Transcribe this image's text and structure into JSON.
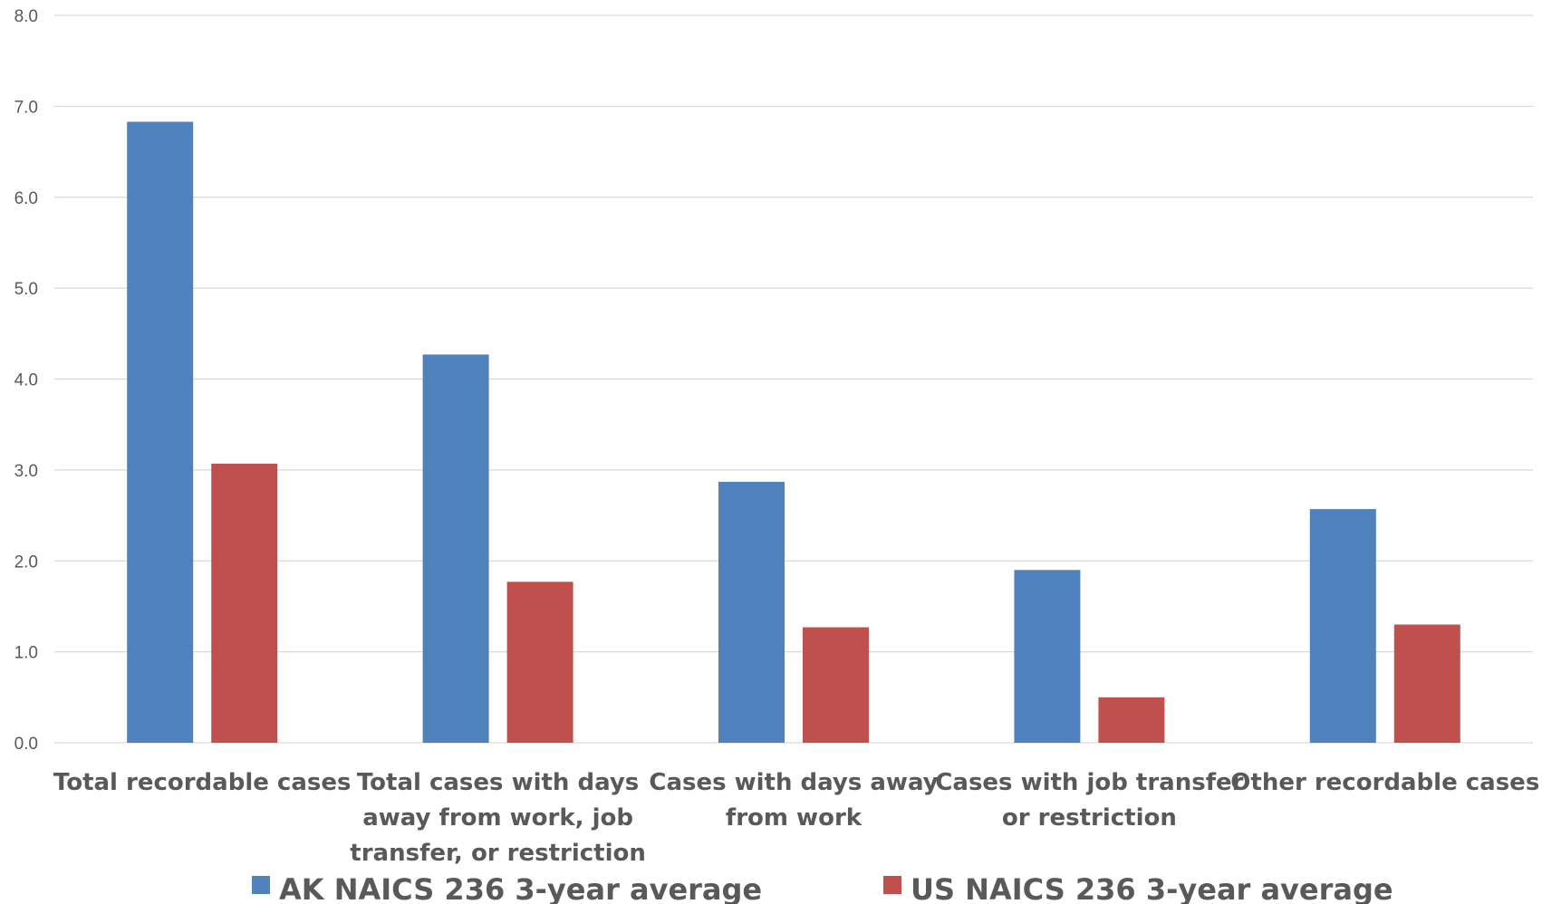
{
  "chart_data": {
    "type": "bar",
    "categories": [
      [
        "Total recordable cases"
      ],
      [
        "Total cases with days",
        "away from work, job",
        "transfer, or restriction"
      ],
      [
        "Cases with days away",
        "from work"
      ],
      [
        "Cases with job transfer",
        "or restriction"
      ],
      [
        "Other recordable cases"
      ]
    ],
    "series": [
      {
        "name": "AK NAICS 236 3-year average",
        "color": "#4f81bd",
        "values": [
          6.83,
          4.27,
          2.87,
          1.9,
          2.57
        ]
      },
      {
        "name": "US NAICS 236 3-year average",
        "color": "#c0504d",
        "values": [
          3.07,
          1.77,
          1.27,
          0.5,
          1.3
        ]
      }
    ],
    "yticks": [
      "0.0",
      "1.0",
      "2.0",
      "3.0",
      "4.0",
      "5.0",
      "6.0",
      "7.0",
      "8.0"
    ],
    "ylim": [
      0,
      8
    ],
    "grid": true,
    "legend_position": "bottom",
    "title": "",
    "xlabel": "",
    "ylabel": ""
  }
}
